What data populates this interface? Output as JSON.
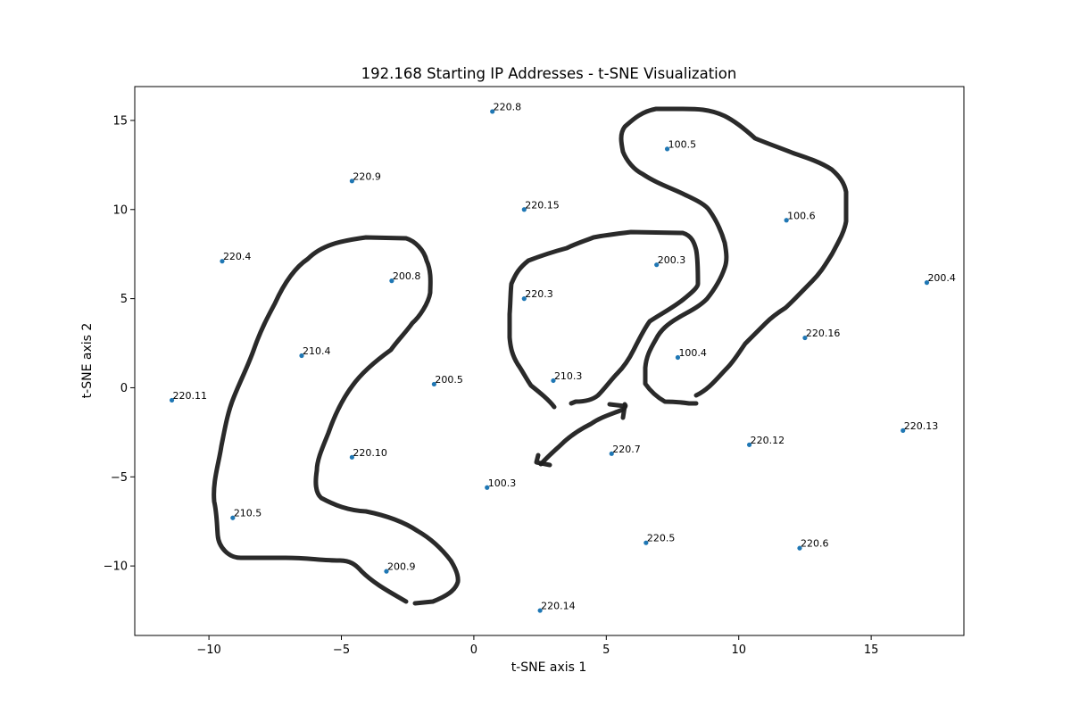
{
  "chart_data": {
    "type": "scatter",
    "title": "192.168 Starting IP Addresses - t-SNE Visualization",
    "xlabel": "t-SNE axis 1",
    "ylabel": "t-SNE axis 2",
    "xlim": [
      -12.8,
      18.5
    ],
    "ylim": [
      -13.9,
      16.9
    ],
    "xticks": [
      -10,
      -5,
      0,
      5,
      10,
      15
    ],
    "xtick_labels": [
      "−10",
      "−5",
      "0",
      "5",
      "10",
      "15"
    ],
    "yticks": [
      -10,
      -5,
      0,
      5,
      10,
      15
    ],
    "ytick_labels": [
      "−10",
      "−5",
      "0",
      "5",
      "10",
      "15"
    ],
    "grid": false,
    "point_color": "#1f77b4",
    "sketch_color": "#1f1f1f",
    "points": [
      {
        "x": 0.7,
        "y": 15.5,
        "label": "220.8"
      },
      {
        "x": 7.3,
        "y": 13.4,
        "label": "100.5"
      },
      {
        "x": -4.6,
        "y": 11.6,
        "label": "220.9"
      },
      {
        "x": 1.9,
        "y": 10.0,
        "label": "220.15"
      },
      {
        "x": 11.8,
        "y": 9.4,
        "label": "100.6"
      },
      {
        "x": -9.5,
        "y": 7.1,
        "label": "220.4"
      },
      {
        "x": 6.9,
        "y": 6.9,
        "label": "200.3"
      },
      {
        "x": -3.1,
        "y": 6.0,
        "label": "200.8"
      },
      {
        "x": 17.1,
        "y": 5.9,
        "label": "200.4"
      },
      {
        "x": 1.9,
        "y": 5.0,
        "label": "220.3"
      },
      {
        "x": 12.5,
        "y": 2.8,
        "label": "220.16"
      },
      {
        "x": -6.5,
        "y": 1.8,
        "label": "210.4"
      },
      {
        "x": 7.7,
        "y": 1.7,
        "label": "100.4"
      },
      {
        "x": 3.0,
        "y": 0.4,
        "label": "210.3"
      },
      {
        "x": -1.5,
        "y": 0.2,
        "label": "200.5"
      },
      {
        "x": -11.4,
        "y": -0.7,
        "label": "220.11"
      },
      {
        "x": 16.2,
        "y": -2.4,
        "label": "220.13"
      },
      {
        "x": 10.4,
        "y": -3.2,
        "label": "220.12"
      },
      {
        "x": 5.2,
        "y": -3.7,
        "label": "220.7"
      },
      {
        "x": -4.6,
        "y": -3.9,
        "label": "220.10"
      },
      {
        "x": 0.5,
        "y": -5.6,
        "label": "100.3"
      },
      {
        "x": -9.1,
        "y": -7.3,
        "label": "210.5"
      },
      {
        "x": 6.5,
        "y": -8.7,
        "label": "220.5"
      },
      {
        "x": 12.3,
        "y": -9.0,
        "label": "220.6"
      },
      {
        "x": -3.3,
        "y": -10.3,
        "label": "200.9"
      },
      {
        "x": 2.5,
        "y": -12.5,
        "label": "220.14"
      }
    ]
  }
}
